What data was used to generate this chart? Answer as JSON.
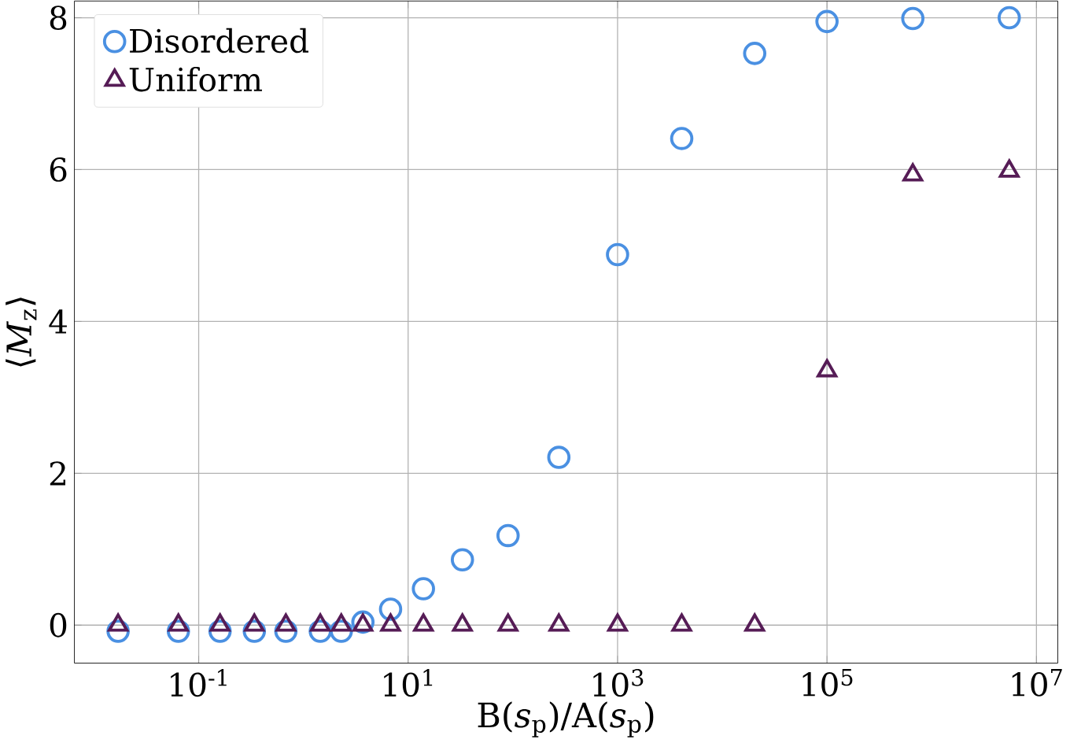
{
  "chart_data": {
    "type": "scatter",
    "xlabel": "B(*s*$_{p}$)/A(*s*$_{p}$)",
    "ylabel": "⟨*M*$_{z}$⟩",
    "x": [
      0.017,
      0.064,
      0.16,
      0.34,
      0.68,
      1.45,
      2.3,
      3.7,
      6.8,
      14,
      33,
      90,
      275,
      1000,
      4100,
      20400,
      100000,
      660000,
      5500000
    ],
    "series": [
      {
        "name": "Disordered",
        "color": "#4a90e2",
        "marker": "circle",
        "values": [
          -0.08,
          -0.08,
          -0.08,
          -0.08,
          -0.08,
          -0.08,
          -0.08,
          0.04,
          0.21,
          0.48,
          0.86,
          1.18,
          2.21,
          4.88,
          6.41,
          7.53,
          7.95,
          7.99,
          8.0
        ]
      },
      {
        "name": "Uniform",
        "color": "#561c56",
        "marker": "triangle",
        "values": [
          0,
          0,
          0,
          0,
          0,
          0,
          0,
          0,
          0,
          0,
          0,
          0,
          0,
          0,
          0,
          0,
          3.35,
          5.93,
          5.98
        ]
      }
    ],
    "log": "x",
    "xlim": [
      0.0065,
      16000000
    ],
    "ylim": [
      -0.5,
      8.22
    ],
    "xticks": [
      {
        "value": 0.1,
        "label": "10$^{-1}$"
      },
      {
        "value": 10,
        "label": "10$^{1}$"
      },
      {
        "value": 1000,
        "label": "10$^{3}$"
      },
      {
        "value": 100000,
        "label": "10$^{5}$"
      },
      {
        "value": 10000000,
        "label": "10$^{7}$"
      }
    ],
    "yticks": [
      0,
      2,
      4,
      6,
      8
    ],
    "grid": true,
    "legend": "top left"
  }
}
